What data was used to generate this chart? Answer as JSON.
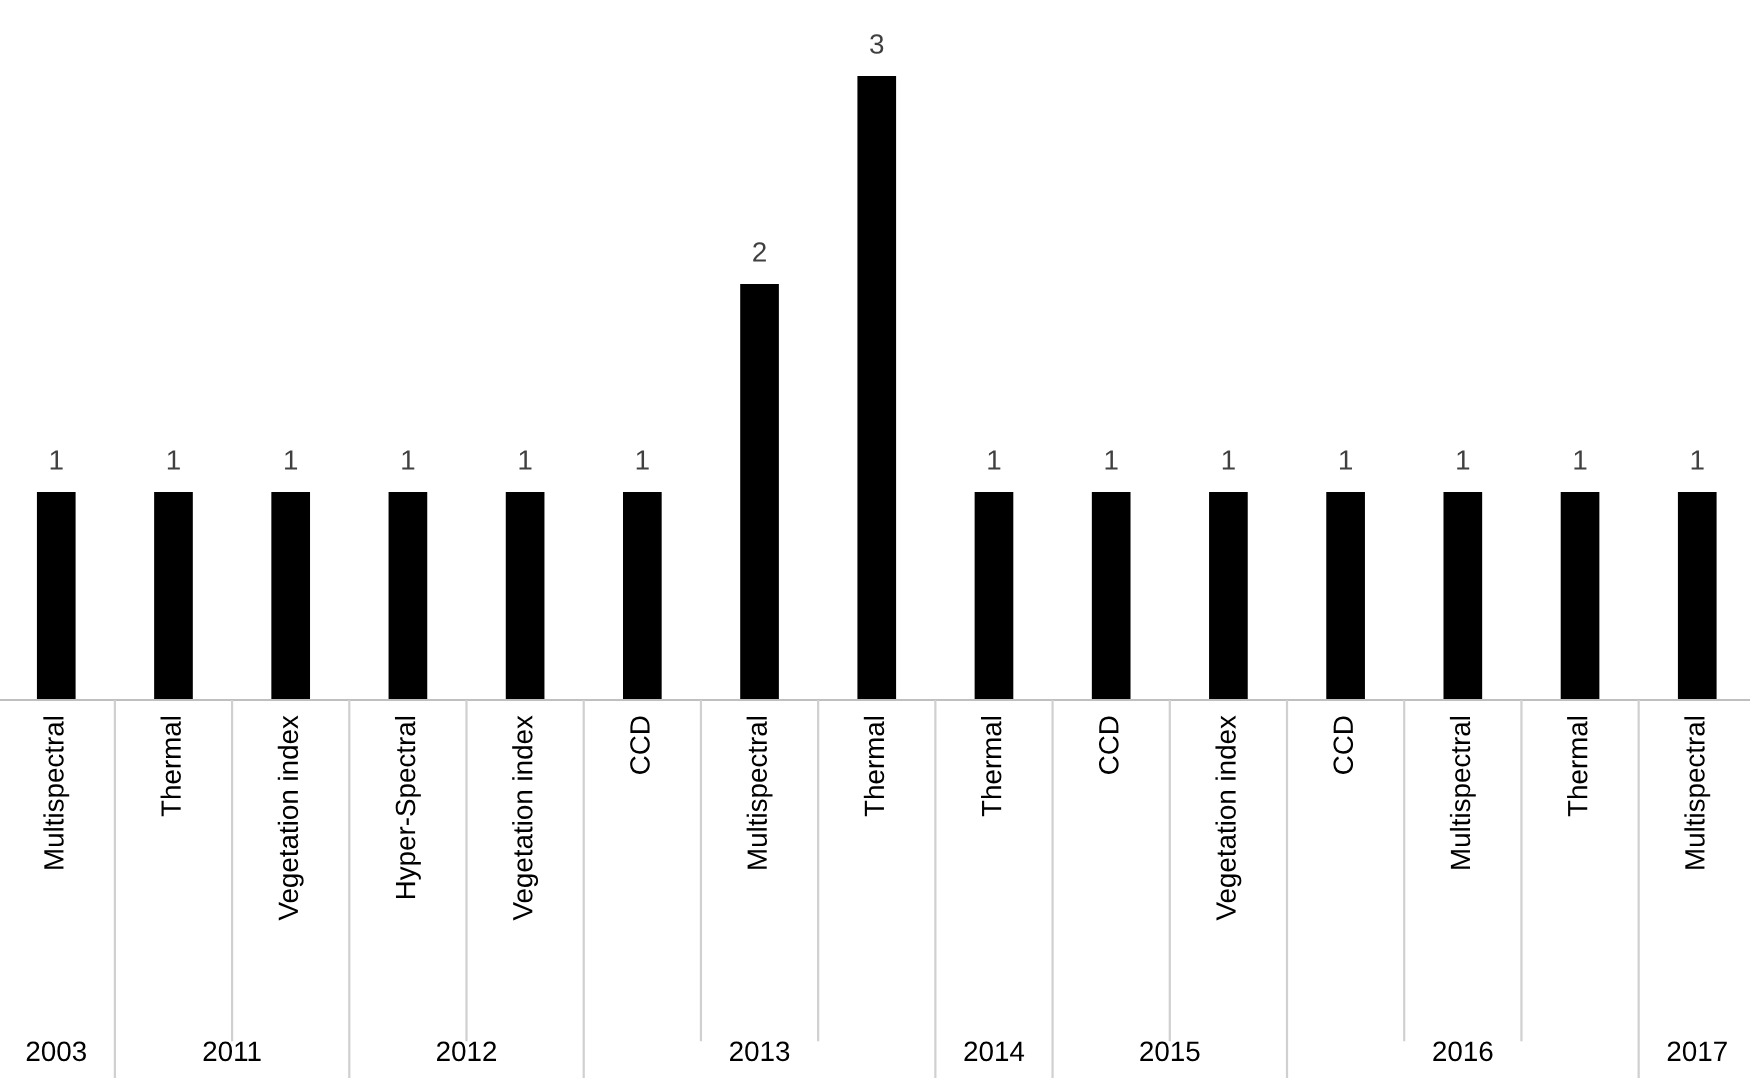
{
  "chart_data": {
    "type": "bar",
    "categories": [
      "Multispectral",
      "Thermal",
      "Vegetation index",
      "Hyper-Spectral",
      "Vegetation index",
      "CCD",
      "Multispectral",
      "Thermal",
      "Thermal",
      "CCD",
      "Vegetation index",
      "CCD",
      "Multispectral",
      "Thermal",
      "Multispectral"
    ],
    "values": [
      1,
      1,
      1,
      1,
      1,
      1,
      2,
      3,
      1,
      1,
      1,
      1,
      1,
      1,
      1
    ],
    "color": "#000000",
    "data_labels": true,
    "annotations": [
      "2003",
      "2011",
      "2012",
      "2013",
      "2014",
      "2015",
      "2016",
      "2017"
    ]
  }
}
